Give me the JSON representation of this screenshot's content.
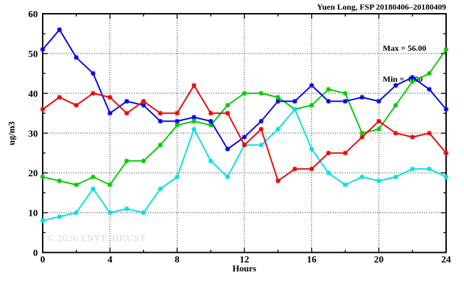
{
  "watermark": "© 2026 ENVF, HKUST",
  "chart_data": {
    "type": "line",
    "title": "Yuen Long, FSP 20180406–20180409",
    "xlabel": "Hours",
    "ylabel": "ug/m3",
    "xlim": [
      0,
      24
    ],
    "ylim": [
      0,
      60
    ],
    "xticks": [
      0,
      4,
      8,
      12,
      16,
      20,
      24
    ],
    "yticks": [
      0,
      10,
      20,
      30,
      40,
      50,
      60
    ],
    "x_minor_step": 2,
    "y_minor_step": 5,
    "grid": true,
    "legend": "none",
    "marker": "asterisk",
    "background": "#ffffff",
    "annotations": {
      "max_label": "Max = 56.00",
      "min_label": "Min =  8.00"
    },
    "x": [
      0,
      1,
      2,
      3,
      4,
      5,
      6,
      7,
      8,
      9,
      10,
      11,
      12,
      13,
      14,
      15,
      16,
      17,
      18,
      19,
      20,
      21,
      22,
      23,
      24
    ],
    "series": [
      {
        "name": "green",
        "color": "#00cc00",
        "values": [
          19,
          18,
          17,
          19,
          17,
          23,
          23,
          27,
          32,
          33,
          32,
          37,
          40,
          40,
          39,
          36,
          37,
          41,
          40,
          30,
          31,
          37,
          43,
          45,
          51
        ]
      },
      {
        "name": "cyan",
        "color": "#00e0e0",
        "values": [
          8,
          9,
          10,
          16,
          10,
          11,
          10,
          16,
          19,
          31,
          23,
          19,
          27,
          27,
          31,
          36,
          26,
          20,
          17,
          19,
          18,
          19,
          21,
          21,
          19
        ]
      },
      {
        "name": "blue",
        "color": "#0000ee",
        "values": [
          51,
          56,
          49,
          45,
          35,
          38,
          37,
          33,
          33,
          34,
          33,
          26,
          29,
          33,
          38,
          38,
          42,
          38,
          38,
          39,
          38,
          42,
          44,
          41,
          36
        ]
      },
      {
        "name": "red",
        "color": "#ee0000",
        "values": [
          36,
          39,
          37,
          40,
          39,
          35,
          38,
          35,
          35,
          42,
          35,
          35,
          27,
          31,
          18,
          21,
          21,
          25,
          25,
          29,
          33,
          30,
          29,
          30,
          25
        ]
      }
    ]
  }
}
